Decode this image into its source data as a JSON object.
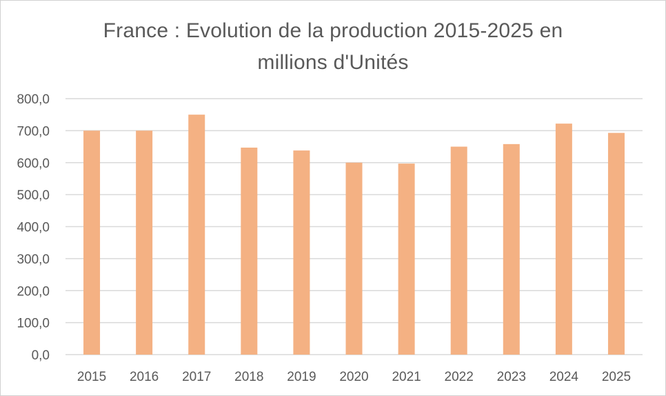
{
  "chart_data": {
    "type": "bar",
    "title_line1": "France : Evolution de la production  2015-2025 en",
    "title_line2": "millions d'Unités",
    "categories": [
      "2015",
      "2016",
      "2017",
      "2018",
      "2019",
      "2020",
      "2021",
      "2022",
      "2023",
      "2024",
      "2025"
    ],
    "values": [
      700,
      700,
      750,
      647,
      638,
      600,
      597,
      650,
      658,
      722,
      693
    ],
    "ylim": [
      0,
      800
    ],
    "yticks": [
      0,
      100,
      200,
      300,
      400,
      500,
      600,
      700,
      800
    ],
    "ytick_labels": [
      "0,0",
      "100,0",
      "200,0",
      "300,0",
      "400,0",
      "500,0",
      "600,0",
      "700,0",
      "800,0"
    ],
    "grid": true,
    "bar_color": "#f4b183",
    "grid_color": "#d9d9d9",
    "text_color": "#595959"
  }
}
